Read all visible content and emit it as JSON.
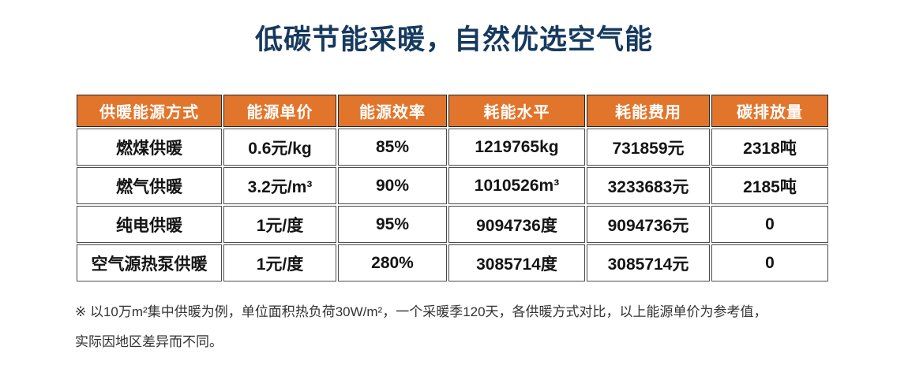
{
  "chart_data": {
    "type": "table",
    "title": "低碳节能采暖，自然优选空气能",
    "columns": [
      "供暖能源方式",
      "能源单价",
      "能源效率",
      "耗能水平",
      "耗能费用",
      "碳排放量"
    ],
    "rows": [
      [
        "燃煤供暖",
        "0.6元/kg",
        "85%",
        "1219765kg",
        "731859元",
        "2318吨"
      ],
      [
        "燃气供暖",
        "3.2元/m³",
        "90%",
        "1010526m³",
        "3233683元",
        "2185吨"
      ],
      [
        "纯电供暖",
        "1元/度",
        "95%",
        "9094736度",
        "9094736元",
        "0"
      ],
      [
        "空气源热泵供暖",
        "1元/度",
        "280%",
        "3085714度",
        "3085714元",
        "0"
      ]
    ]
  },
  "footnote": {
    "line1": "※ 以10万m²集中供暖为例，单位面积热负荷30W/m²，一个采暖季120天，各供暖方式对比，以上能源单价为参考值，",
    "line2": "实际因地区差异而不同。"
  },
  "colors": {
    "title_navy": "#16395e",
    "header_orange": "#e2752c",
    "header_border": "#262626",
    "cell_border": "#4d4d4d",
    "body_text": "#141414",
    "footnote_text": "#333333"
  }
}
